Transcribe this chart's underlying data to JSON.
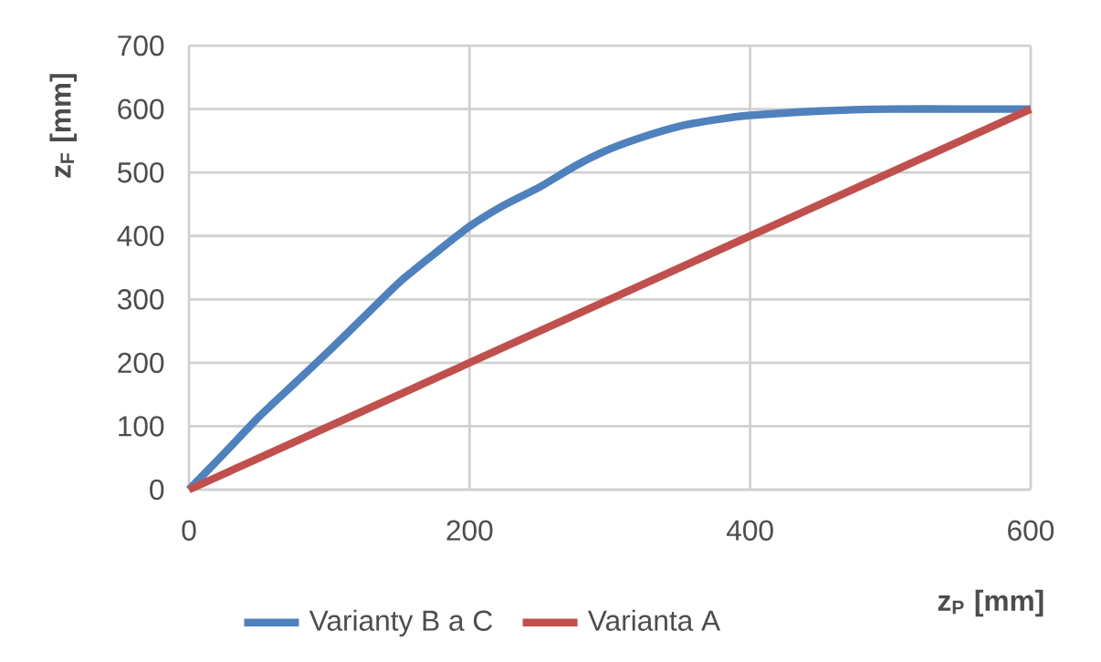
{
  "chart_data": {
    "type": "line",
    "xlabel": "z$_{P}$ [mm]",
    "ylabel": "z$_{F}$ [mm]",
    "series": [
      {
        "name": "Varianty B a C",
        "color": "#4f81bd",
        "x": [
          0,
          25,
          50,
          75,
          100,
          125,
          150,
          175,
          200,
          225,
          250,
          275,
          300,
          325,
          350,
          375,
          400,
          450,
          500,
          550,
          600
        ],
        "values": [
          0,
          57,
          115,
          167,
          219,
          273,
          327,
          372,
          415,
          449,
          477,
          510,
          537,
          557,
          573,
          583,
          590,
          597,
          600,
          600,
          600
        ]
      },
      {
        "name": "Varianta A",
        "color": "#c0504d",
        "x": [
          0,
          600
        ],
        "values": [
          0,
          600
        ]
      }
    ],
    "xlim": [
      0,
      600
    ],
    "ylim": [
      0,
      700
    ],
    "xticks": [
      0,
      200,
      400,
      600
    ],
    "yticks": [
      0,
      100,
      200,
      300,
      400,
      500,
      600,
      700
    ],
    "grid": true,
    "legend": "bottom",
    "marker": "none",
    "line_style": "solid"
  }
}
